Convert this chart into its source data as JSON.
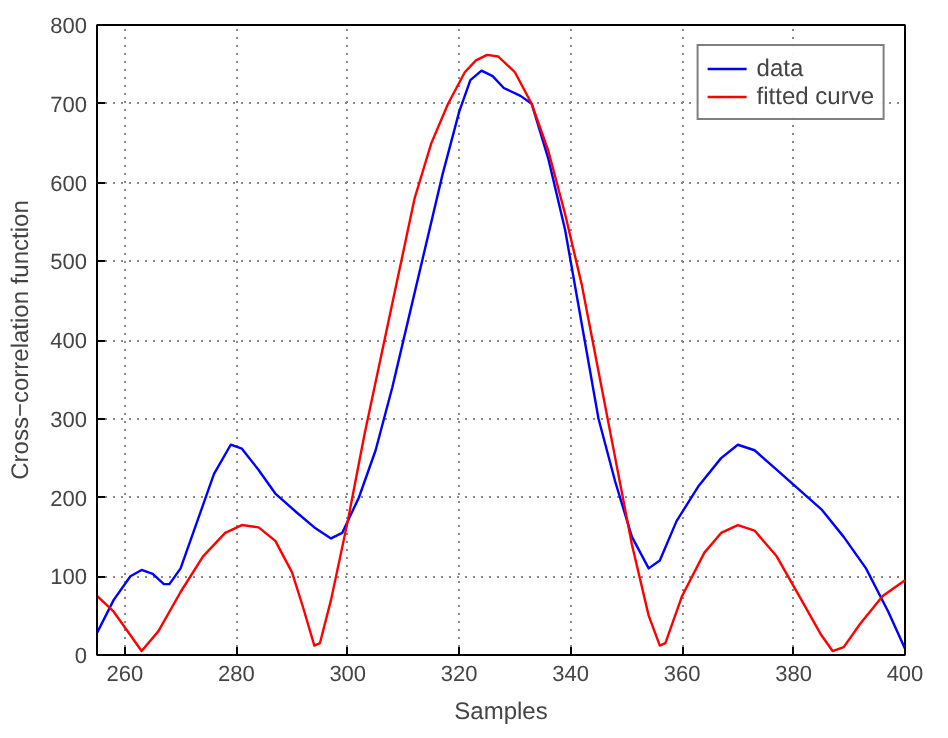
{
  "chart_data": {
    "type": "line",
    "xlabel": "Samples",
    "ylabel": "Cross−correlation function",
    "xlim": [
      255,
      400
    ],
    "ylim": [
      0,
      800
    ],
    "xticks": [
      260,
      280,
      300,
      320,
      340,
      360,
      380,
      400
    ],
    "yticks": [
      0,
      100,
      200,
      300,
      400,
      500,
      600,
      700,
      800
    ],
    "grid": true,
    "legend": "top right",
    "line_style": "solid",
    "series": [
      {
        "name": "data",
        "color": "#0000ff",
        "x": [
          255,
          258,
          261,
          263,
          265,
          267,
          268,
          270,
          273,
          276,
          279,
          281,
          284,
          287,
          291,
          294,
          297,
          299,
          302,
          305,
          308,
          311,
          314,
          317,
          320,
          322,
          324,
          326,
          328,
          331,
          333,
          336,
          339,
          342,
          345,
          348,
          351,
          354,
          356,
          359,
          363,
          367,
          370,
          373,
          377,
          381,
          385,
          389,
          393,
          397,
          400
        ],
        "values": [
          28,
          70,
          100,
          108,
          103,
          90,
          90,
          110,
          170,
          230,
          267,
          262,
          235,
          205,
          180,
          162,
          148,
          155,
          200,
          260,
          340,
          430,
          520,
          610,
          690,
          730,
          742,
          735,
          720,
          710,
          700,
          630,
          540,
          420,
          300,
          220,
          150,
          110,
          120,
          170,
          215,
          250,
          267,
          260,
          235,
          210,
          185,
          150,
          110,
          55,
          8
        ]
      },
      {
        "name": "fitted curve",
        "color": "#ff0000",
        "x": [
          255,
          258,
          261,
          263,
          266,
          270,
          274,
          278,
          281,
          284,
          287,
          290,
          292,
          294,
          295,
          297,
          300,
          303,
          306,
          309,
          312,
          315,
          318,
          321,
          323,
          325,
          327,
          330,
          333,
          336,
          339,
          342,
          345,
          348,
          351,
          354,
          356,
          357,
          360,
          364,
          367,
          370,
          373,
          377,
          381,
          385,
          387,
          389,
          392,
          396,
          400
        ],
        "values": [
          75,
          55,
          25,
          5,
          30,
          80,
          125,
          155,
          165,
          162,
          145,
          105,
          60,
          12,
          15,
          70,
          170,
          280,
          380,
          480,
          580,
          650,
          700,
          740,
          755,
          762,
          760,
          740,
          700,
          640,
          560,
          470,
          360,
          250,
          140,
          50,
          12,
          15,
          75,
          130,
          155,
          165,
          158,
          125,
          75,
          25,
          5,
          10,
          40,
          75,
          95
        ]
      }
    ]
  }
}
